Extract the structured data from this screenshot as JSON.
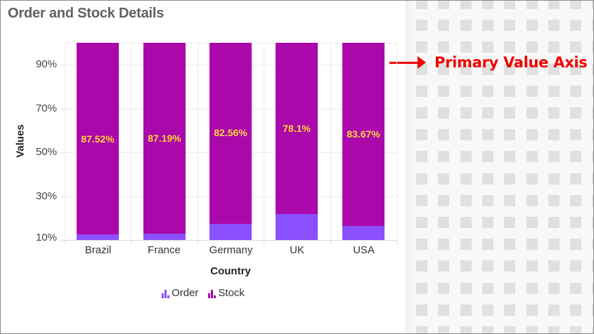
{
  "title": "Order and Stock Details",
  "annotation": {
    "text": "Primary Value Axis",
    "color": "#f00000"
  },
  "colors": {
    "order": "#8b50ff",
    "stock": "#aa08aa",
    "data_label": "#ffd43b"
  },
  "chart_data": {
    "type": "bar",
    "stacked": "100%",
    "title": "Order and Stock Details",
    "xlabel": "Country",
    "ylabel": "Values",
    "categories": [
      "Brazil",
      "France",
      "Germany",
      "UK",
      "USA"
    ],
    "series": [
      {
        "name": "Order",
        "color": "#8b50ff",
        "values": [
          12.48,
          12.81,
          17.44,
          21.9,
          16.33
        ]
      },
      {
        "name": "Stock",
        "color": "#aa08aa",
        "values": [
          87.52,
          87.19,
          82.56,
          78.1,
          83.67
        ]
      }
    ],
    "data_labels": [
      "87.52%",
      "87.19%",
      "82.56%",
      "78.1%",
      "83.67%"
    ],
    "yticks": [
      "10%",
      "30%",
      "50%",
      "70%",
      "90%"
    ],
    "ylim": [
      10,
      100
    ],
    "grid": true,
    "legend_position": "bottom",
    "legend": [
      "Order",
      "Stock"
    ]
  }
}
